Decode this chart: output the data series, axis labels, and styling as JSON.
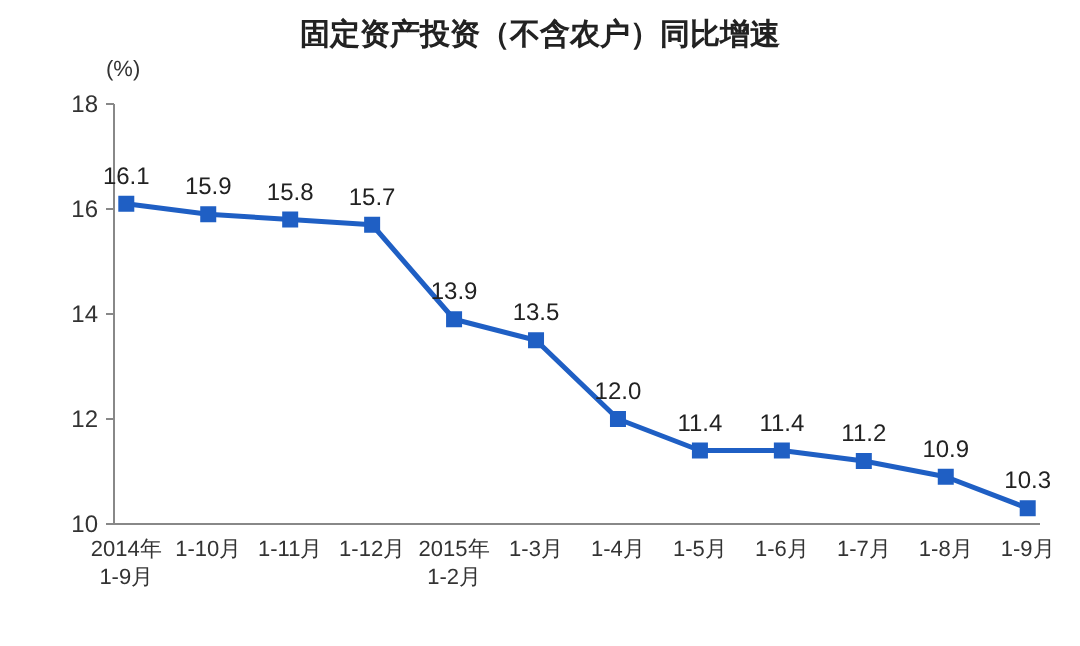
{
  "chart_data": {
    "type": "line",
    "title": "固定资产投资（不含农户）同比增速",
    "ylabel": "(%)",
    "categories": [
      "2014年\n1-9月",
      "1-10月",
      "1-11月",
      "1-12月",
      "2015年\n1-2月",
      "1-3月",
      "1-4月",
      "1-5月",
      "1-6月",
      "1-7月",
      "1-8月",
      "1-9月"
    ],
    "series": [
      {
        "color": "#1f5fc4",
        "values": [
          16.1,
          15.9,
          15.8,
          15.7,
          13.9,
          13.5,
          12.0,
          11.4,
          11.4,
          11.2,
          10.9,
          10.3
        ],
        "value_labels": [
          "16.1",
          "15.9",
          "15.8",
          "15.7",
          "13.9",
          "13.5",
          "12.0",
          "11.4",
          "11.4",
          "11.2",
          "10.9",
          "10.3"
        ]
      }
    ],
    "ylim": [
      10,
      18
    ],
    "yticks": [
      10,
      12,
      14,
      16,
      18
    ],
    "grid": false,
    "marker": "square",
    "line_style": "solid"
  }
}
